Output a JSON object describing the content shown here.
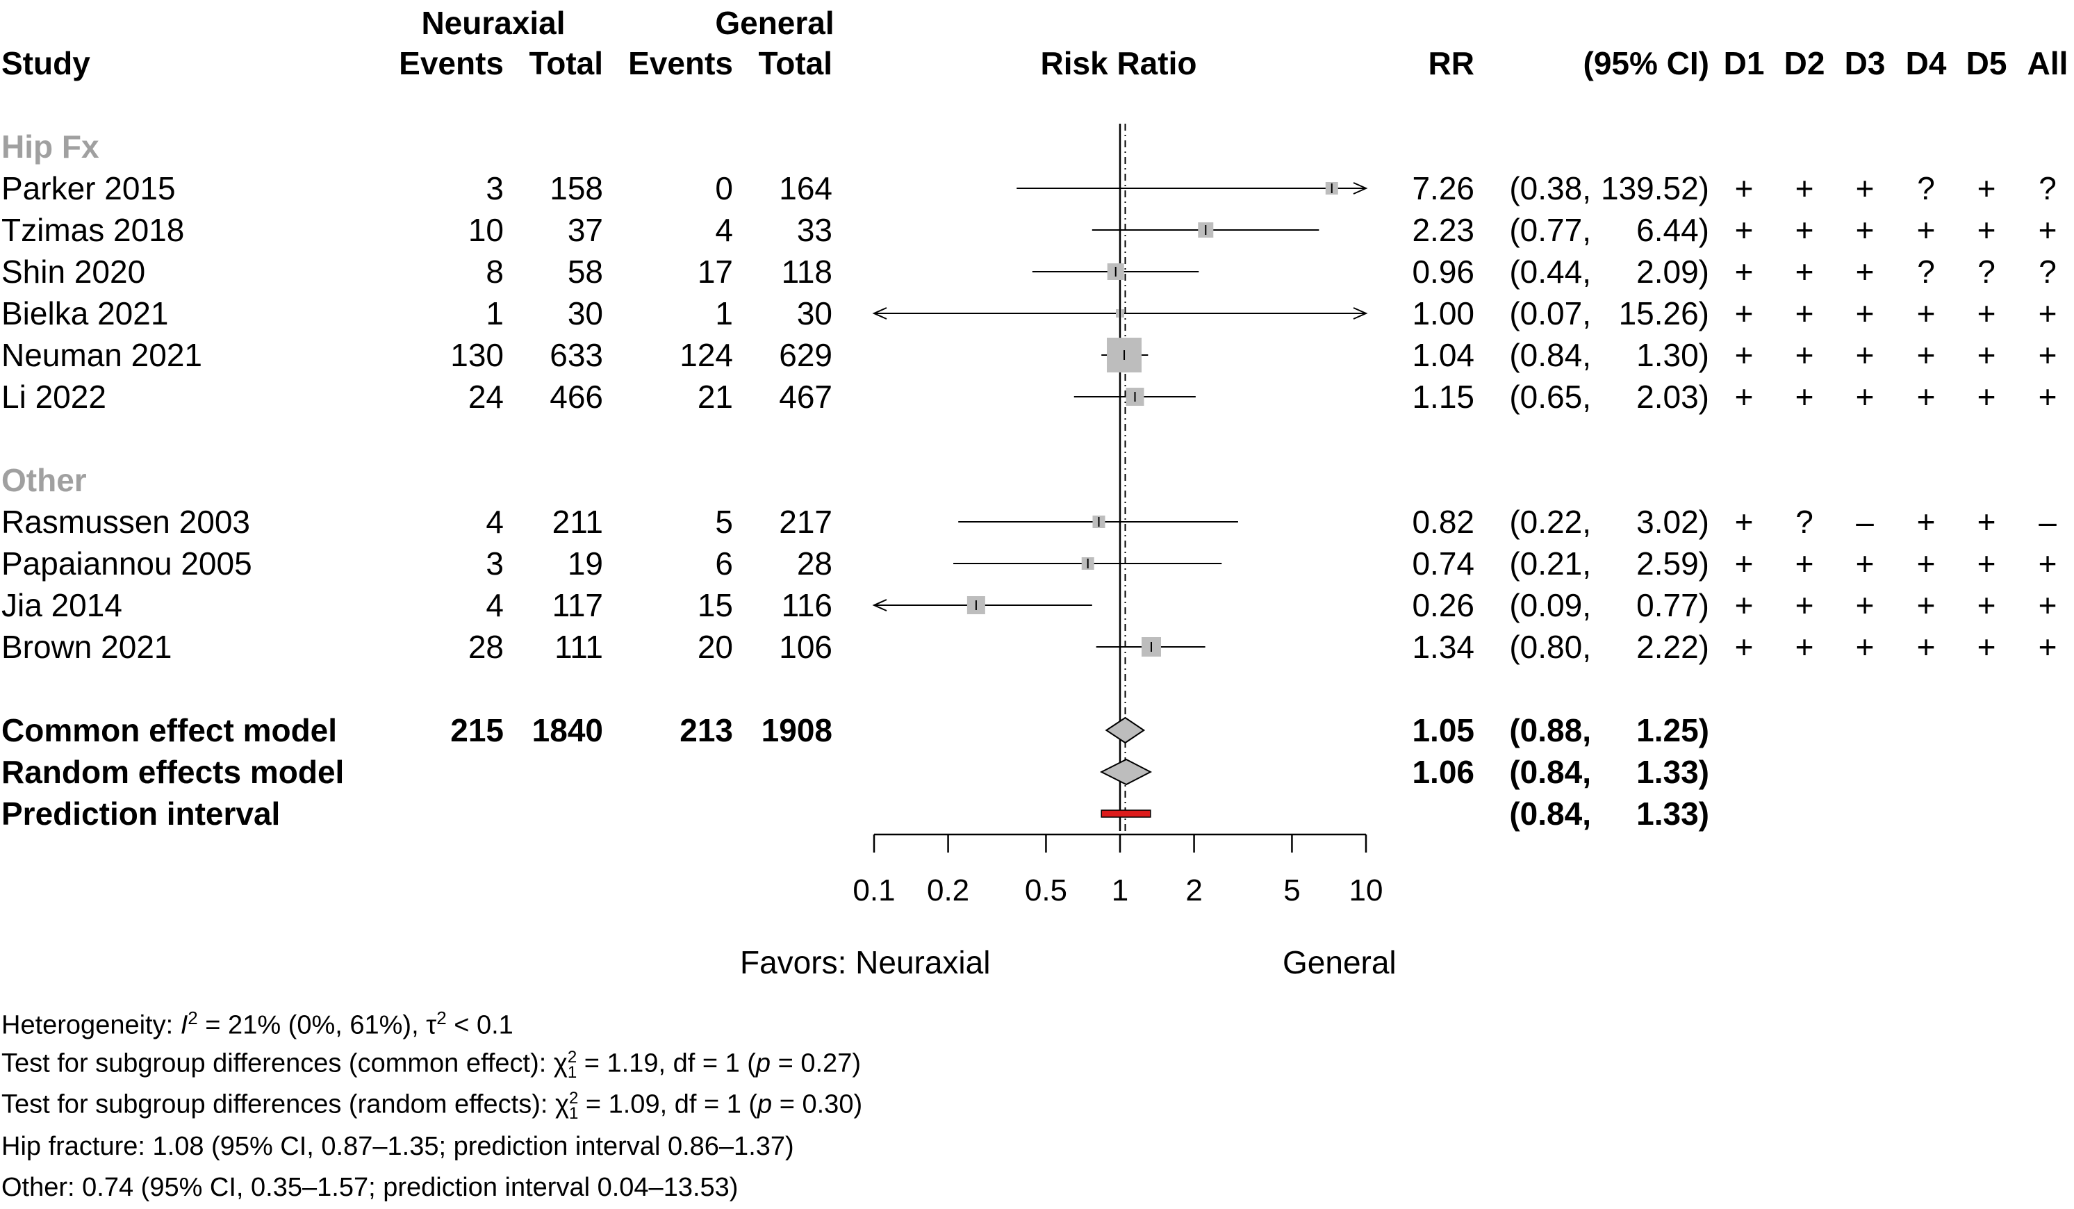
{
  "chart_data": {
    "type": "forest",
    "title": "",
    "header": {
      "study": "Study",
      "group1": "Neuraxial",
      "group2": "General",
      "events": "Events",
      "total": "Total",
      "risk_ratio": "Risk Ratio",
      "rr": "RR",
      "ci": "(95% CI)",
      "domains": [
        "D1",
        "D2",
        "D3",
        "D4",
        "D5",
        "All"
      ]
    },
    "x_axis": {
      "scale": "log",
      "ticks": [
        0.1,
        0.2,
        0.5,
        1,
        2,
        5,
        10
      ],
      "tick_labels": [
        "0.1",
        "0.2",
        "0.5",
        "1",
        "2",
        "5",
        "10"
      ],
      "xlim": [
        0.1,
        10
      ],
      "favors_left": "Favors: Neuraxial",
      "favors_right": "General"
    },
    "subgroups": [
      {
        "name": "Hip Fx",
        "studies": [
          {
            "study": "Parker 2015",
            "e1": "3",
            "n1": "158",
            "e2": "0",
            "n2": "164",
            "rr": 7.26,
            "lo": 0.38,
            "hi": 139.52,
            "rr_text": "7.26",
            "ci_lo_text": "(0.38,",
            "ci_hi_text": "139.52)",
            "weight": 0.2,
            "rob": [
              "+",
              "+",
              "+",
              "?",
              "+",
              "?"
            ]
          },
          {
            "study": "Tzimas 2018",
            "e1": "10",
            "n1": "37",
            "e2": "4",
            "n2": "33",
            "rr": 2.23,
            "lo": 0.77,
            "hi": 6.44,
            "rr_text": "2.23",
            "ci_lo_text": "(0.77,",
            "ci_hi_text": "6.44)",
            "weight": 0.3,
            "rob": [
              "+",
              "+",
              "+",
              "+",
              "+",
              "+"
            ]
          },
          {
            "study": "Shin 2020",
            "e1": "8",
            "n1": "58",
            "e2": "17",
            "n2": "118",
            "rr": 0.96,
            "lo": 0.44,
            "hi": 2.09,
            "rr_text": "0.96",
            "ci_lo_text": "(0.44,",
            "ci_hi_text": "2.09)",
            "weight": 0.35,
            "rob": [
              "+",
              "+",
              "+",
              "?",
              "?",
              "?"
            ]
          },
          {
            "study": "Bielka 2021",
            "e1": "1",
            "n1": "30",
            "e2": "1",
            "n2": "30",
            "rr": 1.0,
            "lo": 0.07,
            "hi": 15.26,
            "rr_text": "1.00",
            "ci_lo_text": "(0.07,",
            "ci_hi_text": "15.26)",
            "weight": 0.05,
            "rob": [
              "+",
              "+",
              "+",
              "+",
              "+",
              "+"
            ]
          },
          {
            "study": "Neuman 2021",
            "e1": "130",
            "n1": "633",
            "e2": "124",
            "n2": "629",
            "rr": 1.04,
            "lo": 0.84,
            "hi": 1.3,
            "rr_text": "1.04",
            "ci_lo_text": "(0.84,",
            "ci_hi_text": "1.30)",
            "weight": 1.0,
            "rob": [
              "+",
              "+",
              "+",
              "+",
              "+",
              "+"
            ]
          },
          {
            "study": "Li 2022",
            "e1": "24",
            "n1": "466",
            "e2": "21",
            "n2": "467",
            "rr": 1.15,
            "lo": 0.65,
            "hi": 2.03,
            "rr_text": "1.15",
            "ci_lo_text": "(0.65,",
            "ci_hi_text": "2.03)",
            "weight": 0.4,
            "rob": [
              "+",
              "+",
              "+",
              "+",
              "+",
              "+"
            ]
          }
        ]
      },
      {
        "name": "Other",
        "studies": [
          {
            "study": "Rasmussen 2003",
            "e1": "4",
            "n1": "211",
            "e2": "5",
            "n2": "217",
            "rr": 0.82,
            "lo": 0.22,
            "hi": 3.02,
            "rr_text": "0.82",
            "ci_lo_text": "(0.22,",
            "ci_hi_text": "3.02)",
            "weight": 0.2,
            "rob": [
              "+",
              "?",
              "–",
              "+",
              "+",
              "–"
            ]
          },
          {
            "study": "Papaiannou 2005",
            "e1": "3",
            "n1": "19",
            "e2": "6",
            "n2": "28",
            "rr": 0.74,
            "lo": 0.21,
            "hi": 2.59,
            "rr_text": "0.74",
            "ci_lo_text": "(0.21,",
            "ci_hi_text": "2.59)",
            "weight": 0.2,
            "rob": [
              "+",
              "+",
              "+",
              "+",
              "+",
              "+"
            ]
          },
          {
            "study": "Jia 2014",
            "e1": "4",
            "n1": "117",
            "e2": "15",
            "n2": "116",
            "rr": 0.26,
            "lo": 0.09,
            "hi": 0.77,
            "rr_text": "0.26",
            "ci_lo_text": "(0.09,",
            "ci_hi_text": "0.77)",
            "weight": 0.4,
            "rob": [
              "+",
              "+",
              "+",
              "+",
              "+",
              "+"
            ]
          },
          {
            "study": "Brown 2021",
            "e1": "28",
            "n1": "111",
            "e2": "20",
            "n2": "106",
            "rr": 1.34,
            "lo": 0.8,
            "hi": 2.22,
            "rr_text": "1.34",
            "ci_lo_text": "(0.80,",
            "ci_hi_text": "2.22)",
            "weight": 0.45,
            "rob": [
              "+",
              "+",
              "+",
              "+",
              "+",
              "+"
            ]
          }
        ]
      }
    ],
    "pooled": [
      {
        "label": "Common effect model",
        "e1": "215",
        "n1": "1840",
        "e2": "213",
        "n2": "1908",
        "rr": 1.05,
        "lo": 0.88,
        "hi": 1.25,
        "rr_text": "1.05",
        "ci_lo_text": "(0.88,",
        "ci_hi_text": "1.25)",
        "kind": "diamond"
      },
      {
        "label": "Random effects model",
        "e1": "",
        "n1": "",
        "e2": "",
        "n2": "",
        "rr": 1.06,
        "lo": 0.84,
        "hi": 1.33,
        "rr_text": "1.06",
        "ci_lo_text": "(0.84,",
        "ci_hi_text": "1.33)",
        "kind": "diamond"
      },
      {
        "label": "Prediction interval",
        "e1": "",
        "n1": "",
        "e2": "",
        "n2": "",
        "lo": 0.84,
        "hi": 1.33,
        "rr_text": "",
        "ci_lo_text": "(0.84,",
        "ci_hi_text": "1.33)",
        "kind": "bar",
        "color": "#dd1c1c"
      }
    ],
    "null_value": 1,
    "common_effect_line": 1.05,
    "marker_color": "#bdbdbd"
  },
  "footnotes": {
    "heterogeneity": {
      "a": "Heterogeneity: ",
      "b": "I",
      "b_sup": "2",
      "c": " = 21% (0%, 61%), ",
      "d": "τ",
      "d_sup": "2",
      "e": " < 0.1"
    },
    "test_common": {
      "a": "Test for subgroup differences (common effect): ",
      "b": "χ",
      "sup": "2",
      "sub": "1",
      "c": " = 1.19, df = 1 (",
      "p": "p",
      "d": " = 0.27)"
    },
    "test_random": {
      "a": "Test for subgroup differences (random effects): ",
      "b": "χ",
      "sup": "2",
      "sub": "1",
      "c": " = 1.09, df = 1 (",
      "p": "p",
      "d": " = 0.30)"
    },
    "hip_fracture": "Hip fracture: 1.08 (95% CI, 0.87–1.35; prediction interval 0.86–1.37)",
    "other": "Other: 0.74 (95% CI, 0.35–1.57; prediction interval 0.04–13.53)"
  }
}
